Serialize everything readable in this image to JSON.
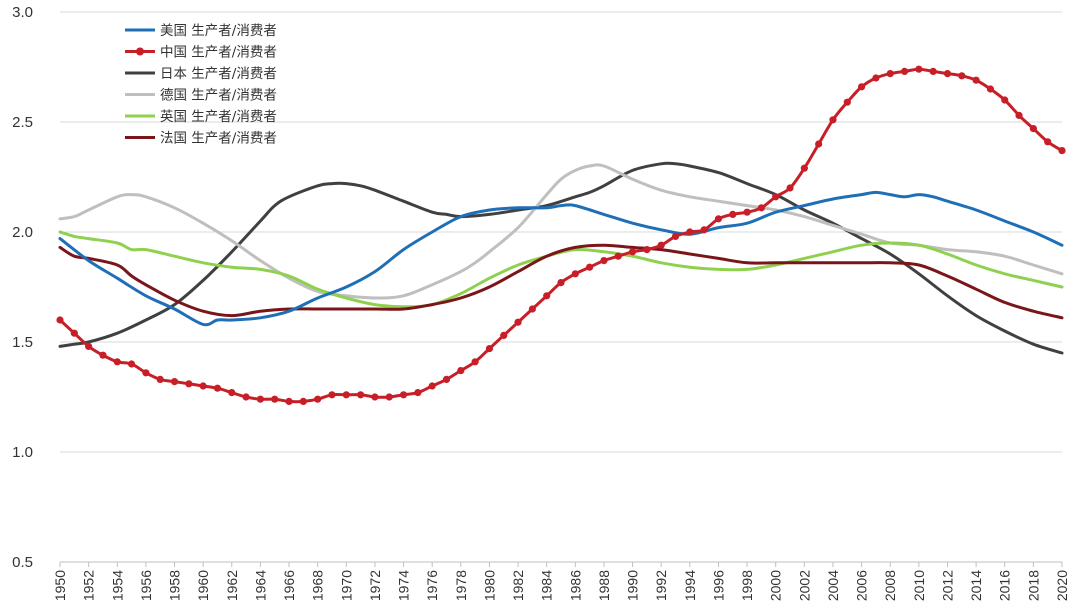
{
  "chart_data": {
    "type": "line",
    "title": "",
    "xlabel": "",
    "ylabel": "",
    "ylim": [
      0.5,
      3.0
    ],
    "yticks": [
      "0.5",
      "1.0",
      "1.5",
      "2.0",
      "2.5",
      "3.0"
    ],
    "xlim": [
      1950,
      2020
    ],
    "xticks": [
      "1950",
      "1952",
      "1954",
      "1956",
      "1958",
      "1960",
      "1962",
      "1964",
      "1966",
      "1968",
      "1970",
      "1972",
      "1974",
      "1976",
      "1978",
      "1980",
      "1982",
      "1984",
      "1986",
      "1988",
      "1990",
      "1992",
      "1994",
      "1996",
      "1998",
      "2000",
      "2002",
      "2004",
      "2006",
      "2008",
      "2010",
      "2012",
      "2014",
      "2016",
      "2018",
      "2020"
    ],
    "legend_position": "top-left",
    "grid": "horizontal",
    "series": [
      {
        "name": "美国 生产者/消费者",
        "color": "#1f6fb7",
        "markers": false,
        "x": [
          1950,
          1952,
          1954,
          1956,
          1958,
          1960,
          1961,
          1962,
          1964,
          1966,
          1968,
          1970,
          1972,
          1974,
          1976,
          1978,
          1980,
          1982,
          1984,
          1985,
          1986,
          1988,
          1990,
          1992,
          1994,
          1996,
          1998,
          2000,
          2002,
          2004,
          2006,
          2007,
          2008,
          2009,
          2010,
          2011,
          2012,
          2014,
          2016,
          2018,
          2020
        ],
        "values": [
          1.97,
          1.87,
          1.79,
          1.71,
          1.65,
          1.58,
          1.6,
          1.6,
          1.61,
          1.64,
          1.7,
          1.75,
          1.82,
          1.92,
          2.0,
          2.07,
          2.1,
          2.11,
          2.11,
          2.12,
          2.12,
          2.08,
          2.04,
          2.01,
          1.99,
          2.02,
          2.04,
          2.09,
          2.12,
          2.15,
          2.17,
          2.18,
          2.17,
          2.16,
          2.17,
          2.16,
          2.14,
          2.1,
          2.05,
          2.0,
          1.94
        ]
      },
      {
        "name": "中国 生产者/消费者",
        "color": "#c81e27",
        "markers": true,
        "x": [
          1950,
          1951,
          1952,
          1953,
          1954,
          1955,
          1956,
          1957,
          1958,
          1959,
          1960,
          1961,
          1962,
          1963,
          1964,
          1965,
          1966,
          1967,
          1968,
          1969,
          1970,
          1971,
          1972,
          1973,
          1974,
          1975,
          1976,
          1977,
          1978,
          1979,
          1980,
          1981,
          1982,
          1983,
          1984,
          1985,
          1986,
          1987,
          1988,
          1989,
          1990,
          1991,
          1992,
          1993,
          1994,
          1995,
          1996,
          1997,
          1998,
          1999,
          2000,
          2001,
          2002,
          2003,
          2004,
          2005,
          2006,
          2007,
          2008,
          2009,
          2010,
          2011,
          2012,
          2013,
          2014,
          2015,
          2016,
          2017,
          2018,
          2019,
          2020
        ],
        "values": [
          1.6,
          1.54,
          1.48,
          1.44,
          1.41,
          1.4,
          1.36,
          1.33,
          1.32,
          1.31,
          1.3,
          1.29,
          1.27,
          1.25,
          1.24,
          1.24,
          1.23,
          1.23,
          1.24,
          1.26,
          1.26,
          1.26,
          1.25,
          1.25,
          1.26,
          1.27,
          1.3,
          1.33,
          1.37,
          1.41,
          1.47,
          1.53,
          1.59,
          1.65,
          1.71,
          1.77,
          1.81,
          1.84,
          1.87,
          1.89,
          1.91,
          1.92,
          1.94,
          1.98,
          2.0,
          2.01,
          2.06,
          2.08,
          2.09,
          2.11,
          2.16,
          2.2,
          2.29,
          2.4,
          2.51,
          2.59,
          2.66,
          2.7,
          2.72,
          2.73,
          2.74,
          2.73,
          2.72,
          2.71,
          2.69,
          2.65,
          2.6,
          2.53,
          2.47,
          2.41,
          2.37
        ]
      },
      {
        "name": "日本 生产者/消费者",
        "color": "#404040",
        "markers": false,
        "x": [
          1950,
          1951,
          1952,
          1954,
          1956,
          1958,
          1960,
          1962,
          1964,
          1965,
          1966,
          1968,
          1969,
          1970,
          1971,
          1972,
          1974,
          1976,
          1977,
          1978,
          1980,
          1982,
          1984,
          1986,
          1987,
          1988,
          1990,
          1992,
          1993,
          1994,
          1996,
          1998,
          2000,
          2002,
          2004,
          2006,
          2008,
          2010,
          2012,
          2014,
          2016,
          2018,
          2020
        ],
        "values": [
          1.48,
          1.49,
          1.5,
          1.54,
          1.6,
          1.67,
          1.78,
          1.91,
          2.05,
          2.12,
          2.16,
          2.21,
          2.22,
          2.22,
          2.21,
          2.19,
          2.14,
          2.09,
          2.08,
          2.07,
          2.08,
          2.1,
          2.12,
          2.16,
          2.18,
          2.21,
          2.28,
          2.31,
          2.31,
          2.3,
          2.27,
          2.22,
          2.17,
          2.1,
          2.04,
          1.97,
          1.9,
          1.81,
          1.71,
          1.62,
          1.55,
          1.49,
          1.45
        ]
      },
      {
        "name": "德国 生产者/消费者",
        "color": "#bfbfbf",
        "markers": false,
        "x": [
          1950,
          1951,
          1952,
          1954,
          1955,
          1956,
          1958,
          1960,
          1962,
          1964,
          1966,
          1968,
          1970,
          1972,
          1974,
          1976,
          1978,
          1979,
          1980,
          1982,
          1984,
          1985,
          1986,
          1987,
          1988,
          1990,
          1992,
          1994,
          1996,
          1998,
          2000,
          2002,
          2004,
          2006,
          2008,
          2010,
          2012,
          2014,
          2016,
          2018,
          2020
        ],
        "values": [
          2.06,
          2.07,
          2.1,
          2.16,
          2.17,
          2.16,
          2.11,
          2.04,
          1.96,
          1.87,
          1.79,
          1.73,
          1.71,
          1.7,
          1.71,
          1.76,
          1.82,
          1.86,
          1.91,
          2.02,
          2.17,
          2.24,
          2.28,
          2.3,
          2.3,
          2.24,
          2.19,
          2.16,
          2.14,
          2.12,
          2.1,
          2.07,
          2.03,
          1.99,
          1.95,
          1.94,
          1.92,
          1.91,
          1.89,
          1.85,
          1.81
        ]
      },
      {
        "name": "英国 生产者/消费者",
        "color": "#8fd14f",
        "markers": false,
        "x": [
          1950,
          1951,
          1952,
          1954,
          1955,
          1956,
          1958,
          1960,
          1962,
          1964,
          1966,
          1968,
          1970,
          1972,
          1974,
          1976,
          1978,
          1980,
          1982,
          1984,
          1986,
          1988,
          1990,
          1992,
          1994,
          1996,
          1998,
          2000,
          2002,
          2004,
          2006,
          2008,
          2010,
          2012,
          2014,
          2016,
          2018,
          2020
        ],
        "values": [
          2.0,
          1.98,
          1.97,
          1.95,
          1.92,
          1.92,
          1.89,
          1.86,
          1.84,
          1.83,
          1.8,
          1.74,
          1.7,
          1.67,
          1.66,
          1.67,
          1.72,
          1.79,
          1.85,
          1.89,
          1.92,
          1.91,
          1.89,
          1.86,
          1.84,
          1.83,
          1.83,
          1.85,
          1.88,
          1.91,
          1.94,
          1.95,
          1.94,
          1.9,
          1.85,
          1.81,
          1.78,
          1.75
        ]
      },
      {
        "name": "法国 生产者/消费者",
        "color": "#7a1519",
        "markers": false,
        "x": [
          1950,
          1951,
          1952,
          1954,
          1955,
          1956,
          1958,
          1960,
          1962,
          1964,
          1966,
          1968,
          1970,
          1972,
          1974,
          1976,
          1978,
          1980,
          1982,
          1984,
          1986,
          1988,
          1990,
          1992,
          1994,
          1996,
          1998,
          2000,
          2002,
          2004,
          2006,
          2008,
          2010,
          2012,
          2014,
          2016,
          2018,
          2020
        ],
        "values": [
          1.93,
          1.89,
          1.88,
          1.85,
          1.8,
          1.76,
          1.69,
          1.64,
          1.62,
          1.64,
          1.65,
          1.65,
          1.65,
          1.65,
          1.65,
          1.67,
          1.7,
          1.75,
          1.82,
          1.89,
          1.93,
          1.94,
          1.93,
          1.92,
          1.9,
          1.88,
          1.86,
          1.86,
          1.86,
          1.86,
          1.86,
          1.86,
          1.85,
          1.8,
          1.74,
          1.68,
          1.64,
          1.61
        ]
      }
    ]
  }
}
